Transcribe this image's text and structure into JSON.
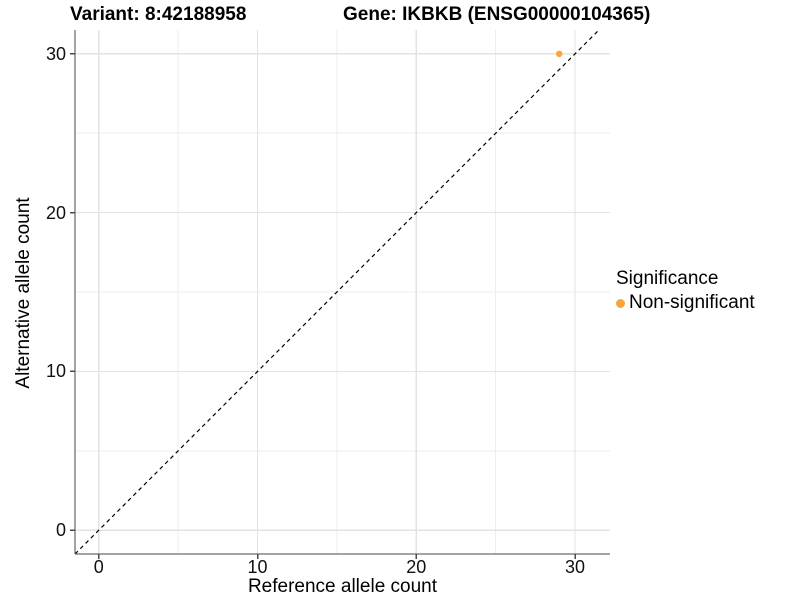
{
  "chart_data": {
    "type": "scatter",
    "title_left": "Variant: 8:42188958",
    "title_right": "Gene: IKBKB (ENSG00000104365)",
    "xlabel": "Reference allele count",
    "ylabel": "Alternative allele count",
    "xlim": [
      -1.5,
      32.2
    ],
    "ylim": [
      -1.5,
      31.5
    ],
    "x_ticks": [
      0,
      10,
      20,
      30
    ],
    "y_ticks": [
      0,
      10,
      20,
      30
    ],
    "minor_gridlines": [
      5,
      15,
      25
    ],
    "grid": "major and minor gridlines, light gray on white panel",
    "reference_line": {
      "kind": "y = x diagonal",
      "style": "dashed",
      "color": "#000000"
    },
    "series": [
      {
        "name": "Non-significant",
        "color": "#FAA43A",
        "points": [
          {
            "x": 29,
            "y": 30
          }
        ]
      }
    ],
    "legend": {
      "title": "Significance",
      "position": "right-middle",
      "entries": [
        {
          "label": "Non-significant",
          "color": "#FAA43A"
        }
      ]
    },
    "style": {
      "axis_line_color": "#4a4a4a",
      "major_grid_color": "#e3e3e3",
      "minor_grid_color": "#eeeeee",
      "background": "#ffffff"
    }
  }
}
